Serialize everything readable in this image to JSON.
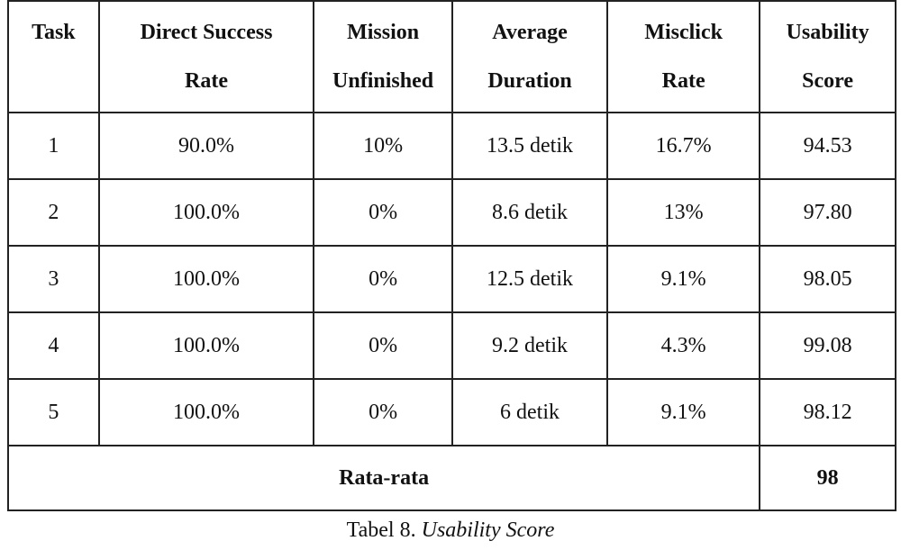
{
  "table": {
    "headers": {
      "task": "Task",
      "direct_success_line1": "Direct Success",
      "direct_success_line2": "Rate",
      "mission_line1": "Mission",
      "mission_line2": "Unfinished",
      "duration_line1": "Average",
      "duration_line2": "Duration",
      "misclick_line1": "Misclick",
      "misclick_line2": "Rate",
      "usability_line1": "Usability",
      "usability_line2": "Score"
    },
    "rows": [
      {
        "task": "1",
        "direct_success": "90.0%",
        "mission_unfinished": "10%",
        "average_duration": "13.5 detik",
        "misclick_rate": "16.7%",
        "usability_score": "94.53"
      },
      {
        "task": "2",
        "direct_success": "100.0%",
        "mission_unfinished": "0%",
        "average_duration": "8.6 detik",
        "misclick_rate": "13%",
        "usability_score": "97.80"
      },
      {
        "task": "3",
        "direct_success": "100.0%",
        "mission_unfinished": "0%",
        "average_duration": "12.5 detik",
        "misclick_rate": "9.1%",
        "usability_score": "98.05"
      },
      {
        "task": "4",
        "direct_success": "100.0%",
        "mission_unfinished": "0%",
        "average_duration": "9.2 detik",
        "misclick_rate": "4.3%",
        "usability_score": "99.08"
      },
      {
        "task": "5",
        "direct_success": "100.0%",
        "mission_unfinished": "0%",
        "average_duration": "6 detik",
        "misclick_rate": "9.1%",
        "usability_score": "98.12"
      }
    ],
    "footer": {
      "label": "Rata-rata",
      "value": "98"
    }
  },
  "caption": {
    "prefix": "Tabel 8.",
    "title": "Usability Score"
  }
}
